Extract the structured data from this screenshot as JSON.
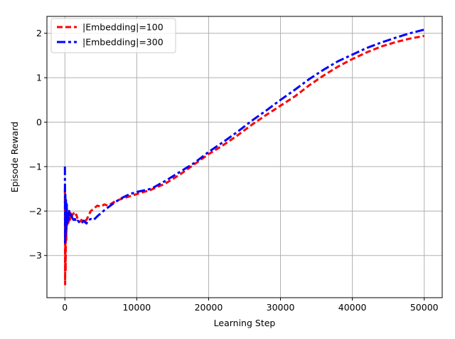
{
  "chart_data": {
    "type": "line",
    "xlabel": "Learning Step",
    "ylabel": "Episode Reward",
    "xlim": [
      -2500,
      52500
    ],
    "ylim": [
      -3.95,
      2.38
    ],
    "grid": true,
    "legend_position": "top-left",
    "x_ticks": [
      0,
      10000,
      20000,
      30000,
      40000,
      50000
    ],
    "x_tick_labels": [
      "0",
      "10000",
      "20000",
      "30000",
      "40000",
      "50000"
    ],
    "y_ticks": [
      -3,
      -2,
      -1,
      0,
      1,
      2
    ],
    "y_tick_labels": [
      "−3",
      "−2",
      "−1",
      "0",
      "1",
      "2"
    ],
    "series": [
      {
        "name": "|Embedding|=100",
        "color": "#ff0000",
        "linestyle": "dashed",
        "x": [
          0,
          30,
          60,
          100,
          150,
          200,
          260,
          330,
          400,
          500,
          600,
          700,
          800,
          900,
          1000,
          1200,
          1400,
          1600,
          1800,
          2000,
          2300,
          2600,
          3000,
          3300,
          3600,
          4000,
          4500,
          5000,
          5500,
          6000,
          7000,
          8000,
          9000,
          10000,
          12000,
          14000,
          16000,
          18000,
          20000,
          22000,
          24000,
          26000,
          28000,
          30000,
          32000,
          34000,
          36000,
          38000,
          40000,
          42000,
          44000,
          46000,
          48000,
          50000
        ],
        "y": [
          -1.5,
          -3.65,
          -2.2,
          -3.35,
          -2.0,
          -2.65,
          -1.85,
          -2.35,
          -2.05,
          -2.3,
          -2.1,
          -2.2,
          -2.05,
          -2.18,
          -2.1,
          -2.05,
          -2.12,
          -2.08,
          -2.2,
          -2.25,
          -2.2,
          -2.24,
          -2.2,
          -2.1,
          -2.0,
          -1.95,
          -1.88,
          -1.9,
          -1.85,
          -1.88,
          -1.78,
          -1.72,
          -1.67,
          -1.62,
          -1.52,
          -1.38,
          -1.18,
          -0.95,
          -0.72,
          -0.52,
          -0.3,
          -0.06,
          0.16,
          0.37,
          0.58,
          0.83,
          1.05,
          1.25,
          1.42,
          1.57,
          1.7,
          1.8,
          1.88,
          1.94
        ]
      },
      {
        "name": "|Embedding|=300",
        "color": "#0000ff",
        "linestyle": "dashdot",
        "x": [
          0,
          30,
          60,
          100,
          150,
          200,
          260,
          330,
          400,
          500,
          600,
          700,
          800,
          900,
          1000,
          1200,
          1400,
          1600,
          1800,
          2000,
          2300,
          2600,
          3000,
          3300,
          3600,
          4000,
          4500,
          5000,
          5500,
          6000,
          7000,
          8000,
          9000,
          10000,
          12000,
          14000,
          16000,
          18000,
          20000,
          22000,
          24000,
          26000,
          28000,
          30000,
          32000,
          34000,
          36000,
          38000,
          40000,
          42000,
          44000,
          46000,
          48000,
          50000
        ],
        "y": [
          -1.0,
          -2.75,
          -1.6,
          -2.55,
          -1.75,
          -2.45,
          -1.85,
          -2.3,
          -2.05,
          -2.2,
          -2.0,
          -2.1,
          -2.15,
          -2.05,
          -2.15,
          -2.2,
          -2.18,
          -2.25,
          -2.22,
          -2.25,
          -2.28,
          -2.22,
          -2.28,
          -2.2,
          -2.18,
          -2.2,
          -2.12,
          -2.05,
          -1.98,
          -1.92,
          -1.8,
          -1.7,
          -1.62,
          -1.57,
          -1.5,
          -1.32,
          -1.12,
          -0.92,
          -0.67,
          -0.45,
          -0.22,
          0.03,
          0.26,
          0.5,
          0.73,
          0.97,
          1.18,
          1.37,
          1.52,
          1.67,
          1.79,
          1.9,
          2.0,
          2.08
        ]
      }
    ]
  }
}
